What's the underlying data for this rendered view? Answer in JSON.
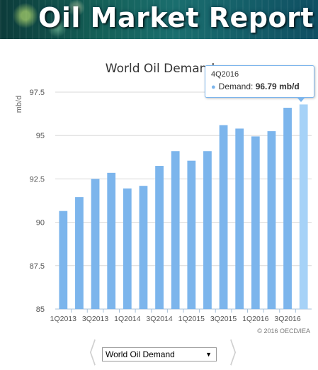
{
  "banner": {
    "title": "Oil Market Report"
  },
  "chart_data": {
    "type": "bar",
    "title": "World Oil Demand",
    "ylabel": "mb/d",
    "xlabel": "",
    "ylim": [
      85,
      97.5
    ],
    "yticks": [
      "85",
      "87.5",
      "90",
      "92.5",
      "95",
      "97.5"
    ],
    "grid": true,
    "categories": [
      "1Q2013",
      "2Q2013",
      "3Q2013",
      "4Q2013",
      "1Q2014",
      "2Q2014",
      "3Q2014",
      "4Q2014",
      "1Q2015",
      "2Q2015",
      "3Q2015",
      "4Q2015",
      "1Q2016",
      "2Q2016",
      "3Q2016",
      "4Q2016"
    ],
    "xtick_labels": [
      "1Q2013",
      "3Q2013",
      "1Q2014",
      "3Q2014",
      "1Q2015",
      "3Q2015",
      "1Q2016",
      "3Q2016"
    ],
    "series": [
      {
        "values": [
          90.65,
          91.45,
          92.5,
          92.85,
          91.95,
          92.1,
          93.25,
          94.1,
          93.55,
          94.1,
          95.6,
          95.4,
          94.95,
          95.25,
          96.6,
          96.79
        ]
      }
    ],
    "highlight_index": 15,
    "colors": {
      "bar": "#7cb5ec",
      "bar_hover": "#a6d2f7"
    },
    "credit": "© 2016 OECD/IEA"
  },
  "tooltip": {
    "period": "4Q2016",
    "series_label": "Demand:",
    "value": "96.79 mb/d"
  },
  "selector": {
    "selected": "World Oil Demand"
  },
  "icons": {
    "menu": "hamburger-menu-icon",
    "prev": "chevron-left-icon",
    "next": "chevron-right-icon"
  }
}
